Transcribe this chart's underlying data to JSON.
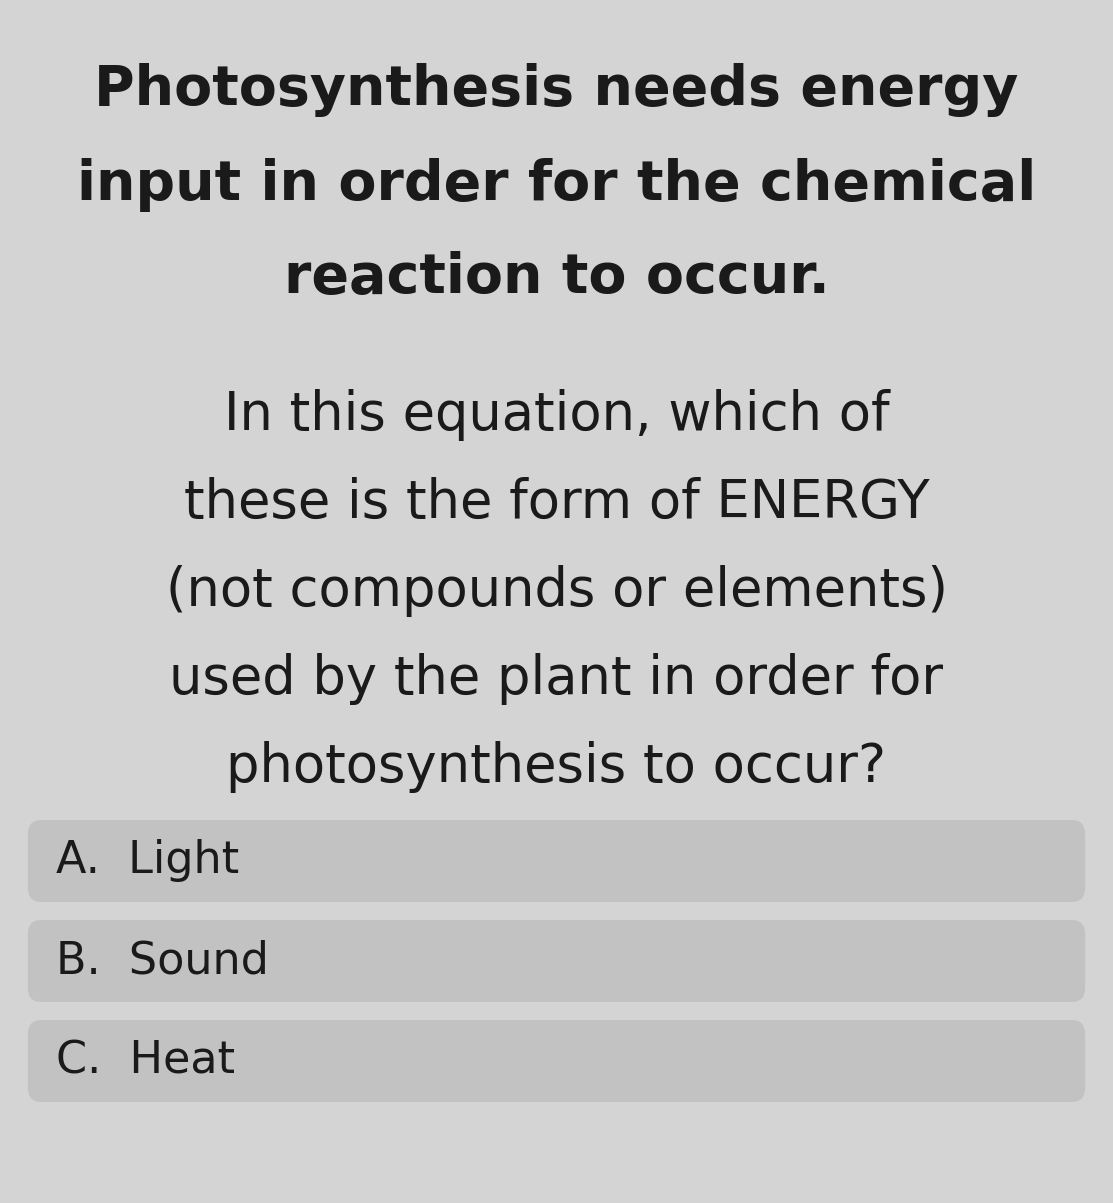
{
  "background_color": "#d4d4d4",
  "text_color": "#1a1a1a",
  "heading_line1": "Photosynthesis needs energy",
  "heading_line2": "input in order for the chemical",
  "heading_line3": "reaction to occur.",
  "question_line1": "In this equation, which of",
  "question_line2": "these is the form of ENERGY",
  "question_line3": "(not compounds or elements)",
  "question_line4": "used by the plant in order for",
  "question_line5": "photosynthesis to occur?",
  "choices": [
    "A.  Light",
    "B.  Sound",
    "C.  Heat"
  ],
  "choice_box_color": "#c2c2c2",
  "heading_fontsize": 40,
  "question_fontsize": 38,
  "choice_fontsize": 32,
  "fig_width": 11.13,
  "fig_height": 12.03,
  "dpi": 100
}
